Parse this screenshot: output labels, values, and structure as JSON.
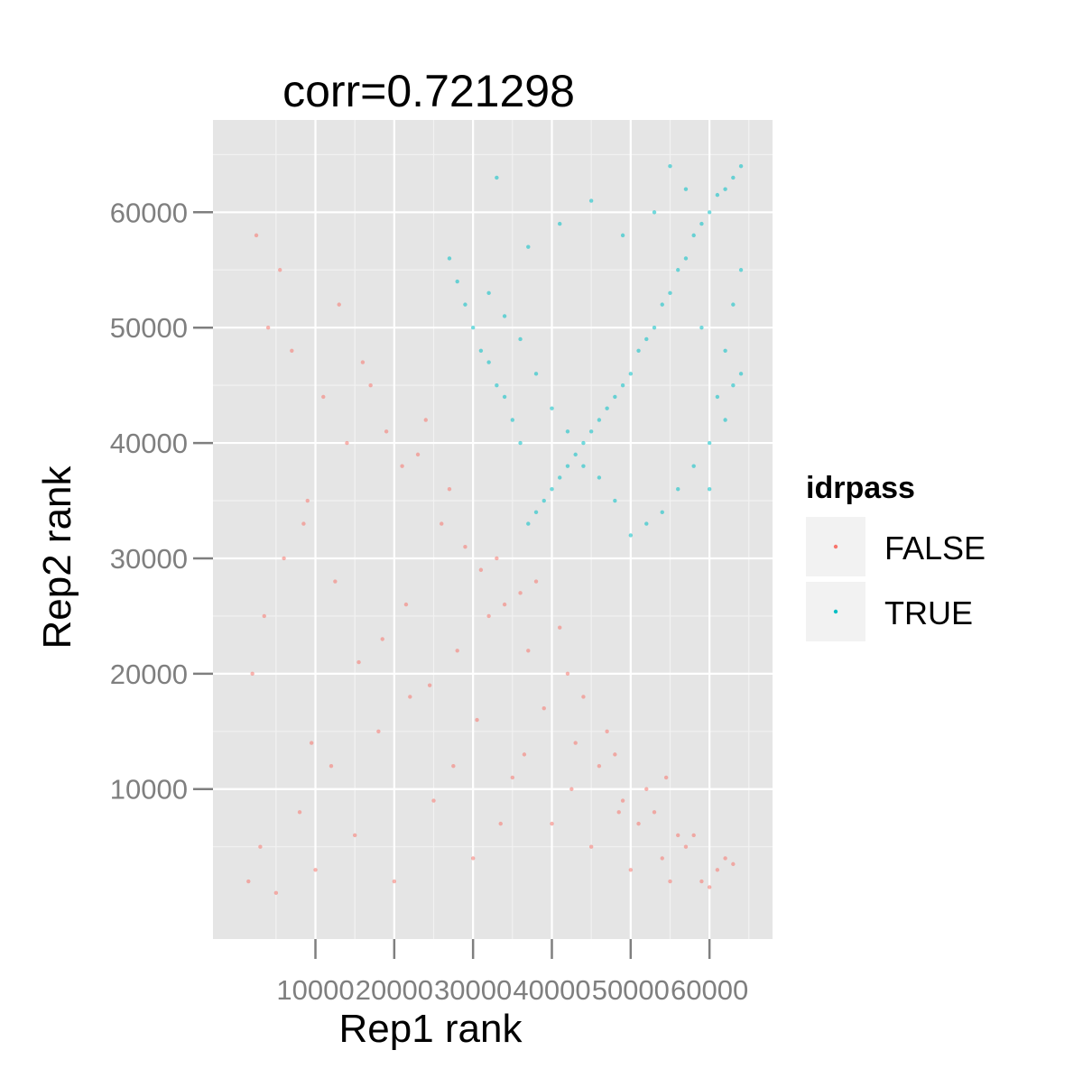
{
  "chart_data": {
    "type": "scatter",
    "title": "corr=0.721298",
    "xlabel": "Rep1 rank",
    "ylabel": "Rep2 rank",
    "xlim": [
      -3000,
      68000
    ],
    "ylim": [
      -3000,
      68000
    ],
    "x_ticks": [
      10000,
      20000,
      30000,
      40000,
      50000,
      60000
    ],
    "x_tick_labels": [
      "10000",
      "20000",
      "30000",
      "40000",
      "50000",
      "60000"
    ],
    "y_ticks": [
      10000,
      20000,
      30000,
      40000,
      50000,
      60000
    ],
    "y_tick_labels": [
      "10000",
      "20000",
      "30000",
      "40000",
      "50000",
      "60000"
    ],
    "grid": true,
    "legend": {
      "title": "idrpass",
      "placement": "right",
      "entries": [
        {
          "label": "FALSE",
          "color": "#F8766D"
        },
        {
          "label": "TRUE",
          "color": "#00BFC4"
        }
      ]
    },
    "series": [
      {
        "name": "FALSE",
        "color": "#F8766D",
        "x": [
          1500,
          3000,
          5000,
          8000,
          10000,
          12000,
          15000,
          18000,
          20000,
          22000,
          25000,
          28000,
          30000,
          32000,
          35000,
          38000,
          40000,
          42000,
          45000,
          48000,
          50000,
          52000,
          55000,
          58000,
          60000,
          62000,
          2000,
          6000,
          9000,
          14000,
          17000,
          21000,
          24000,
          27000,
          33000,
          36000,
          41000,
          44000,
          47000,
          53000,
          57000,
          61000,
          4000,
          7000,
          11000,
          13000,
          16000,
          19000,
          23000,
          26000,
          29000,
          31000,
          34000,
          37000,
          39000,
          43000,
          46000,
          49000,
          51000,
          54000,
          56000,
          59000,
          63000,
          2500,
          5500,
          8500,
          12500,
          18500,
          24500,
          30500,
          36500,
          42500,
          48500,
          54500,
          3500,
          9500,
          15500,
          21500,
          27500,
          33500
        ],
        "y": [
          2000,
          5000,
          1000,
          8000,
          3000,
          12000,
          6000,
          15000,
          2000,
          18000,
          9000,
          22000,
          4000,
          25000,
          11000,
          28000,
          7000,
          20000,
          5000,
          13000,
          3000,
          10000,
          2000,
          6000,
          1500,
          4000,
          20000,
          30000,
          35000,
          40000,
          45000,
          38000,
          42000,
          36000,
          30000,
          27000,
          24000,
          18000,
          15000,
          8000,
          5000,
          3000,
          50000,
          48000,
          44000,
          52000,
          47000,
          41000,
          39000,
          33000,
          31000,
          29000,
          26000,
          22000,
          17000,
          14000,
          12000,
          9000,
          7000,
          4000,
          6000,
          2000,
          3500,
          58000,
          55000,
          33000,
          28000,
          23000,
          19000,
          16000,
          13000,
          10000,
          8000,
          11000,
          25000,
          14000,
          21000,
          26000,
          12000,
          7000
        ]
      },
      {
        "name": "TRUE",
        "color": "#00BFC4",
        "x": [
          64000,
          63000,
          62000,
          61000,
          60000,
          59000,
          58000,
          57000,
          56000,
          55000,
          54000,
          53000,
          52000,
          51000,
          50000,
          49000,
          48000,
          47000,
          46000,
          45000,
          44000,
          43000,
          42000,
          41000,
          40000,
          39000,
          38000,
          37000,
          36000,
          35000,
          34000,
          33000,
          32000,
          31000,
          30000,
          29000,
          28000,
          27000,
          64000,
          63000,
          62000,
          61000,
          60000,
          58000,
          56000,
          54000,
          52000,
          50000,
          48000,
          46000,
          44000,
          42000,
          40000,
          38000,
          36000,
          34000,
          32000,
          64000,
          62000,
          60000,
          57000,
          53000,
          49000,
          45000,
          41000,
          37000,
          33000,
          63000,
          59000,
          55000
        ],
        "y": [
          64000,
          63000,
          62000,
          61500,
          60000,
          59000,
          58000,
          56000,
          55000,
          53000,
          52000,
          50000,
          49000,
          48000,
          46000,
          45000,
          44000,
          43000,
          42000,
          41000,
          40000,
          39000,
          38000,
          37000,
          36000,
          35000,
          34000,
          33000,
          40000,
          42000,
          44000,
          45000,
          47000,
          48000,
          50000,
          52000,
          54000,
          56000,
          55000,
          52000,
          48000,
          44000,
          40000,
          38000,
          36000,
          34000,
          33000,
          32000,
          35000,
          37000,
          38000,
          41000,
          43000,
          46000,
          49000,
          51000,
          53000,
          46000,
          42000,
          36000,
          62000,
          60000,
          58000,
          61000,
          59000,
          57000,
          63000,
          45000,
          50000,
          64000
        ]
      }
    ]
  }
}
